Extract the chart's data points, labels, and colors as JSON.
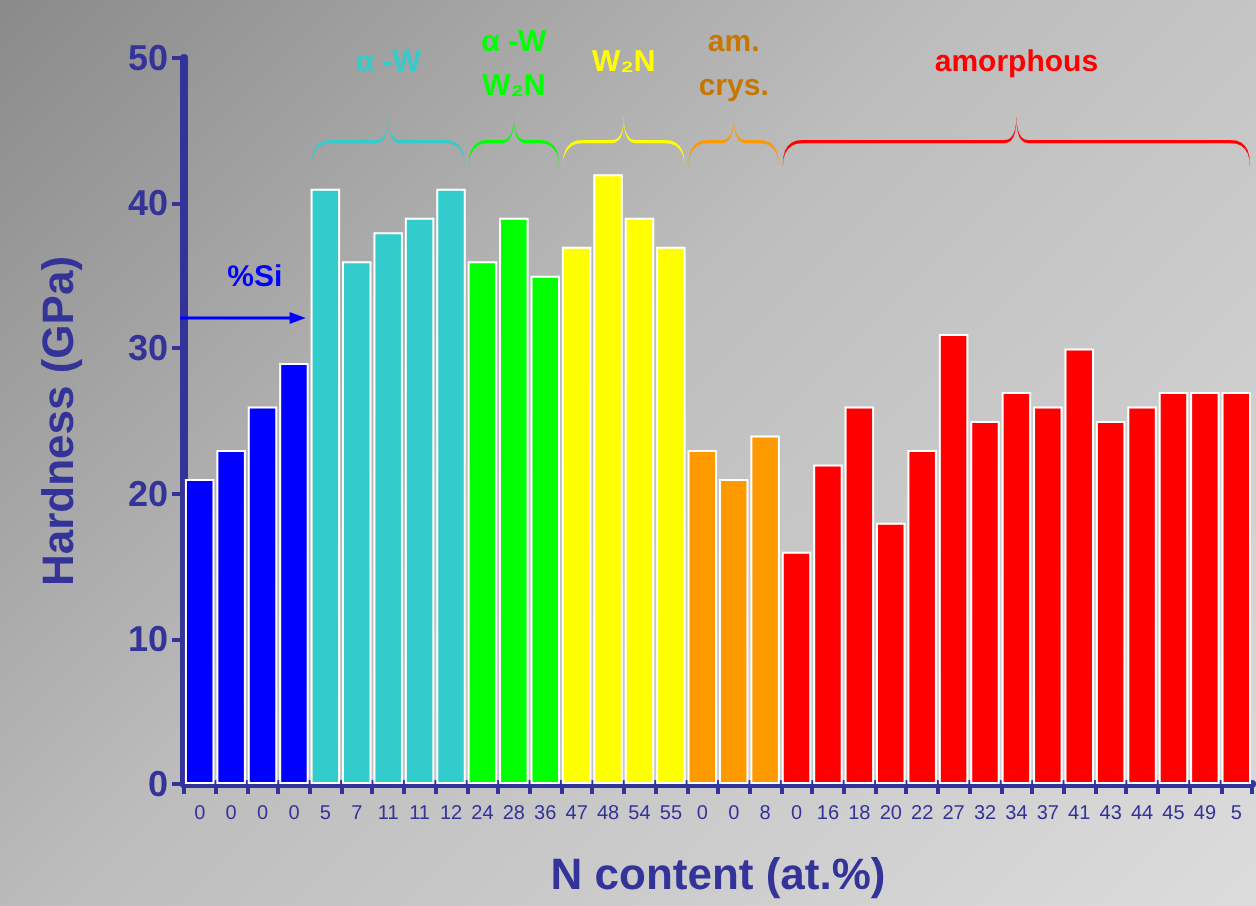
{
  "chart_data": {
    "type": "bar",
    "xlabel": "N content (at.%)",
    "ylabel": "Hardness (GPa)",
    "categories": [
      "0",
      "0",
      "0",
      "0",
      "5",
      "7",
      "11",
      "11",
      "12",
      "24",
      "28",
      "36",
      "47",
      "48",
      "54",
      "55",
      "0",
      "0",
      "8",
      "0",
      "16",
      "18",
      "20",
      "22",
      "27",
      "32",
      "34",
      "37",
      "41",
      "43",
      "44",
      "45",
      "49",
      "5"
    ],
    "values": [
      21,
      23,
      26,
      29,
      41,
      36,
      38,
      39,
      41,
      36,
      39,
      35,
      37,
      42,
      39,
      37,
      23,
      21,
      24,
      16,
      22,
      26,
      18,
      23,
      31,
      25,
      27,
      26,
      30,
      25,
      26,
      27,
      27,
      27
    ],
    "colors": [
      "#0000ff",
      "#0000ff",
      "#0000ff",
      "#0000ff",
      "#33cccc",
      "#33cccc",
      "#33cccc",
      "#33cccc",
      "#33cccc",
      "#00ff00",
      "#00ff00",
      "#00ff00",
      "#ffff00",
      "#ffff00",
      "#ffff00",
      "#ffff00",
      "#ff9900",
      "#ff9900",
      "#ff9900",
      "#ff0000",
      "#ff0000",
      "#ff0000",
      "#ff0000",
      "#ff0000",
      "#ff0000",
      "#ff0000",
      "#ff0000",
      "#ff0000",
      "#ff0000",
      "#ff0000",
      "#ff0000",
      "#ff0000",
      "#ff0000",
      "#ff0000"
    ],
    "ylim": [
      0,
      50
    ],
    "yticks": [
      0,
      10,
      20,
      30,
      40,
      50
    ],
    "annotations": [
      "α -W",
      "α -W\nW₂N",
      "W₂N",
      "am.\ncrys.",
      "amorphous",
      "%Si"
    ],
    "grid": false
  }
}
